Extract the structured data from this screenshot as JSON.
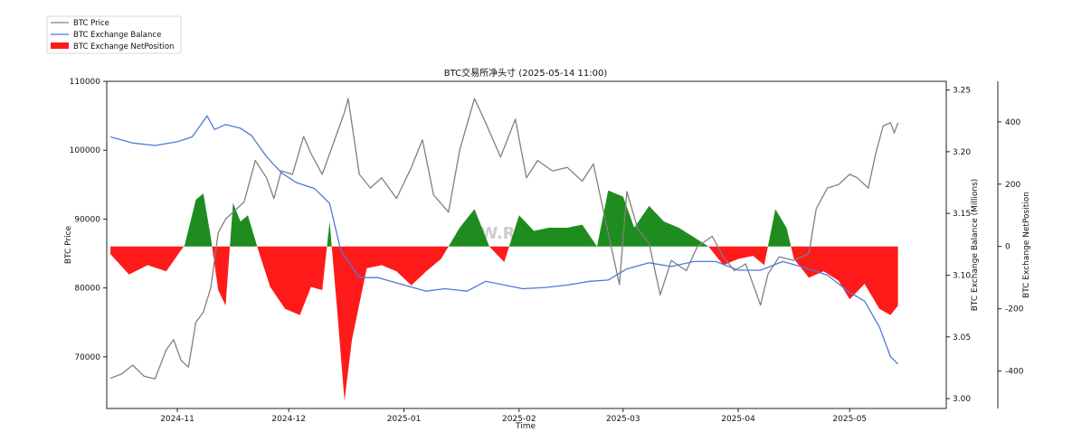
{
  "chart_data": {
    "type": "line",
    "title": "BTC交易所净头寸 (2025-05-14 11:00)",
    "xlabel": "Time",
    "ylabel_left": "BTC Price",
    "ylabel_right1": "BTC Exchange Balance (Millions)",
    "ylabel_right2": "BTC Exchange NetPosition",
    "watermark": "W.R",
    "x_ticks": [
      "2024-11",
      "2024-12",
      "2025-01",
      "2025-02",
      "2025-03",
      "2025-04",
      "2025-05"
    ],
    "x_range": [
      "2024-10-13",
      "2025-05-27"
    ],
    "y_left": {
      "range": [
        62500,
        110000
      ],
      "ticks": [
        "70000",
        "80000",
        "90000",
        "100000",
        "110000"
      ]
    },
    "y_right1": {
      "range": [
        2.992,
        3.257
      ],
      "ticks": [
        "3.00",
        "3.05",
        "3.10",
        "3.15",
        "3.20",
        "3.25"
      ]
    },
    "y_right2": {
      "range": [
        -520,
        530
      ],
      "ticks": [
        "-400",
        "-200",
        "0",
        "200",
        "400"
      ]
    },
    "legend": {
      "position": "top-left",
      "entries": [
        "BTC Price",
        "BTC Exchange Balance",
        "BTC Exchange NetPosition"
      ]
    },
    "colors": {
      "price": "#808080",
      "balance": "#4f79d8",
      "positive": "#1f8c1f",
      "negative": "#ff1a1a"
    },
    "series": [
      {
        "name": "BTC Price",
        "axis": "left",
        "points": [
          [
            "2024-10-14",
            66900
          ],
          [
            "2024-10-17",
            67500
          ],
          [
            "2024-10-20",
            68800
          ],
          [
            "2024-10-23",
            67200
          ],
          [
            "2024-10-26",
            66800
          ],
          [
            "2024-10-29",
            71000
          ],
          [
            "2024-10-31",
            72500
          ],
          [
            "2024-11-02",
            69500
          ],
          [
            "2024-11-04",
            68500
          ],
          [
            "2024-11-06",
            75000
          ],
          [
            "2024-11-08",
            76500
          ],
          [
            "2024-11-10",
            80000
          ],
          [
            "2024-11-12",
            88000
          ],
          [
            "2024-11-14",
            90000
          ],
          [
            "2024-11-16",
            91000
          ],
          [
            "2024-11-19",
            92500
          ],
          [
            "2024-11-22",
            98500
          ],
          [
            "2024-11-25",
            96000
          ],
          [
            "2024-11-27",
            93000
          ],
          [
            "2024-11-29",
            97000
          ],
          [
            "2024-12-02",
            96500
          ],
          [
            "2024-12-05",
            102000
          ],
          [
            "2024-12-07",
            99500
          ],
          [
            "2024-12-10",
            96500
          ],
          [
            "2024-12-13",
            101000
          ],
          [
            "2024-12-16",
            105500
          ],
          [
            "2024-12-17",
            107500
          ],
          [
            "2024-12-20",
            96500
          ],
          [
            "2024-12-23",
            94500
          ],
          [
            "2024-12-26",
            96000
          ],
          [
            "2024-12-30",
            93000
          ],
          [
            "2025-01-03",
            97500
          ],
          [
            "2025-01-06",
            101500
          ],
          [
            "2025-01-09",
            93500
          ],
          [
            "2025-01-13",
            91000
          ],
          [
            "2025-01-16",
            100000
          ],
          [
            "2025-01-20",
            107500
          ],
          [
            "2025-01-23",
            104000
          ],
          [
            "2025-01-27",
            99000
          ],
          [
            "2025-01-31",
            104500
          ],
          [
            "2025-02-03",
            96000
          ],
          [
            "2025-02-06",
            98500
          ],
          [
            "2025-02-10",
            97000
          ],
          [
            "2025-02-14",
            97500
          ],
          [
            "2025-02-18",
            95500
          ],
          [
            "2025-02-21",
            98000
          ],
          [
            "2025-02-25",
            88000
          ],
          [
            "2025-02-28",
            80500
          ],
          [
            "2025-03-02",
            94000
          ],
          [
            "2025-03-05",
            88500
          ],
          [
            "2025-03-08",
            86500
          ],
          [
            "2025-03-11",
            79000
          ],
          [
            "2025-03-14",
            84000
          ],
          [
            "2025-03-18",
            82500
          ],
          [
            "2025-03-21",
            86000
          ],
          [
            "2025-03-25",
            87500
          ],
          [
            "2025-03-28",
            84500
          ],
          [
            "2025-03-31",
            82500
          ],
          [
            "2025-04-03",
            83500
          ],
          [
            "2025-04-07",
            77500
          ],
          [
            "2025-04-09",
            82000
          ],
          [
            "2025-04-12",
            84500
          ],
          [
            "2025-04-16",
            84000
          ],
          [
            "2025-04-20",
            85000
          ],
          [
            "2025-04-22",
            91500
          ],
          [
            "2025-04-25",
            94500
          ],
          [
            "2025-04-28",
            95000
          ],
          [
            "2025-05-01",
            96500
          ],
          [
            "2025-05-03",
            96000
          ],
          [
            "2025-05-06",
            94500
          ],
          [
            "2025-05-08",
            99500
          ],
          [
            "2025-05-10",
            103500
          ],
          [
            "2025-05-12",
            104000
          ],
          [
            "2025-05-13",
            102500
          ],
          [
            "2025-05-14",
            104000
          ]
        ]
      },
      {
        "name": "BTC Exchange Balance",
        "axis": "right1",
        "points": [
          [
            "2024-10-14",
            3.212
          ],
          [
            "2024-10-20",
            3.207
          ],
          [
            "2024-10-26",
            3.205
          ],
          [
            "2024-11-01",
            3.208
          ],
          [
            "2024-11-05",
            3.212
          ],
          [
            "2024-11-09",
            3.229
          ],
          [
            "2024-11-11",
            3.218
          ],
          [
            "2024-11-14",
            3.222
          ],
          [
            "2024-11-18",
            3.219
          ],
          [
            "2024-11-21",
            3.213
          ],
          [
            "2024-11-25",
            3.196
          ],
          [
            "2024-11-29",
            3.183
          ],
          [
            "2024-12-03",
            3.175
          ],
          [
            "2024-12-08",
            3.17
          ],
          [
            "2024-12-12",
            3.158
          ],
          [
            "2024-12-15",
            3.12
          ],
          [
            "2024-12-20",
            3.098
          ],
          [
            "2024-12-25",
            3.098
          ],
          [
            "2025-01-01",
            3.092
          ],
          [
            "2025-01-07",
            3.087
          ],
          [
            "2025-01-12",
            3.089
          ],
          [
            "2025-01-18",
            3.087
          ],
          [
            "2025-01-23",
            3.095
          ],
          [
            "2025-01-28",
            3.092
          ],
          [
            "2025-02-02",
            3.089
          ],
          [
            "2025-02-08",
            3.09
          ],
          [
            "2025-02-14",
            3.092
          ],
          [
            "2025-02-20",
            3.095
          ],
          [
            "2025-02-25",
            3.096
          ],
          [
            "2025-03-02",
            3.105
          ],
          [
            "2025-03-08",
            3.11
          ],
          [
            "2025-03-14",
            3.107
          ],
          [
            "2025-03-20",
            3.111
          ],
          [
            "2025-03-26",
            3.111
          ],
          [
            "2025-04-01",
            3.104
          ],
          [
            "2025-04-07",
            3.104
          ],
          [
            "2025-04-13",
            3.111
          ],
          [
            "2025-04-19",
            3.106
          ],
          [
            "2025-04-25",
            3.1
          ],
          [
            "2025-05-01",
            3.086
          ],
          [
            "2025-05-05",
            3.079
          ],
          [
            "2025-05-09",
            3.058
          ],
          [
            "2025-05-12",
            3.034
          ],
          [
            "2025-05-14",
            3.028
          ]
        ]
      },
      {
        "name": "BTC Exchange NetPosition",
        "axis": "right2",
        "type": "area",
        "points": [
          [
            "2024-10-14",
            -25
          ],
          [
            "2024-10-19",
            -90
          ],
          [
            "2024-10-24",
            -60
          ],
          [
            "2024-10-29",
            -80
          ],
          [
            "2024-11-03",
            5
          ],
          [
            "2024-11-06",
            150
          ],
          [
            "2024-11-08",
            170
          ],
          [
            "2024-11-10",
            30
          ],
          [
            "2024-11-12",
            -140
          ],
          [
            "2024-11-14",
            -190
          ],
          [
            "2024-11-16",
            140
          ],
          [
            "2024-11-18",
            80
          ],
          [
            "2024-11-20",
            100
          ],
          [
            "2024-11-23",
            -20
          ],
          [
            "2024-11-26",
            -130
          ],
          [
            "2024-11-30",
            -200
          ],
          [
            "2024-12-04",
            -220
          ],
          [
            "2024-12-07",
            -130
          ],
          [
            "2024-12-10",
            -140
          ],
          [
            "2024-12-12",
            80
          ],
          [
            "2024-12-14",
            -200
          ],
          [
            "2024-12-16",
            -495
          ],
          [
            "2024-12-18",
            -300
          ],
          [
            "2024-12-22",
            -70
          ],
          [
            "2024-12-26",
            -60
          ],
          [
            "2024-12-30",
            -80
          ],
          [
            "2025-01-03",
            -125
          ],
          [
            "2025-01-07",
            -80
          ],
          [
            "2025-01-11",
            -40
          ],
          [
            "2025-01-16",
            60
          ],
          [
            "2025-01-20",
            120
          ],
          [
            "2025-01-24",
            0
          ],
          [
            "2025-01-28",
            -50
          ],
          [
            "2025-02-01",
            100
          ],
          [
            "2025-02-05",
            50
          ],
          [
            "2025-02-09",
            60
          ],
          [
            "2025-02-14",
            60
          ],
          [
            "2025-02-18",
            70
          ],
          [
            "2025-02-22",
            0
          ],
          [
            "2025-02-25",
            180
          ],
          [
            "2025-03-01",
            160
          ],
          [
            "2025-03-04",
            60
          ],
          [
            "2025-03-08",
            130
          ],
          [
            "2025-03-12",
            80
          ],
          [
            "2025-03-16",
            60
          ],
          [
            "2025-03-20",
            30
          ],
          [
            "2025-03-24",
            0
          ],
          [
            "2025-03-28",
            -60
          ],
          [
            "2025-04-01",
            -40
          ],
          [
            "2025-04-05",
            -30
          ],
          [
            "2025-04-08",
            -60
          ],
          [
            "2025-04-11",
            120
          ],
          [
            "2025-04-14",
            60
          ],
          [
            "2025-04-16",
            -40
          ],
          [
            "2025-04-20",
            -100
          ],
          [
            "2025-04-24",
            -80
          ],
          [
            "2025-04-28",
            -110
          ],
          [
            "2025-05-01",
            -170
          ],
          [
            "2025-05-05",
            -120
          ],
          [
            "2025-05-09",
            -200
          ],
          [
            "2025-05-12",
            -220
          ],
          [
            "2025-05-14",
            -190
          ]
        ]
      }
    ]
  }
}
